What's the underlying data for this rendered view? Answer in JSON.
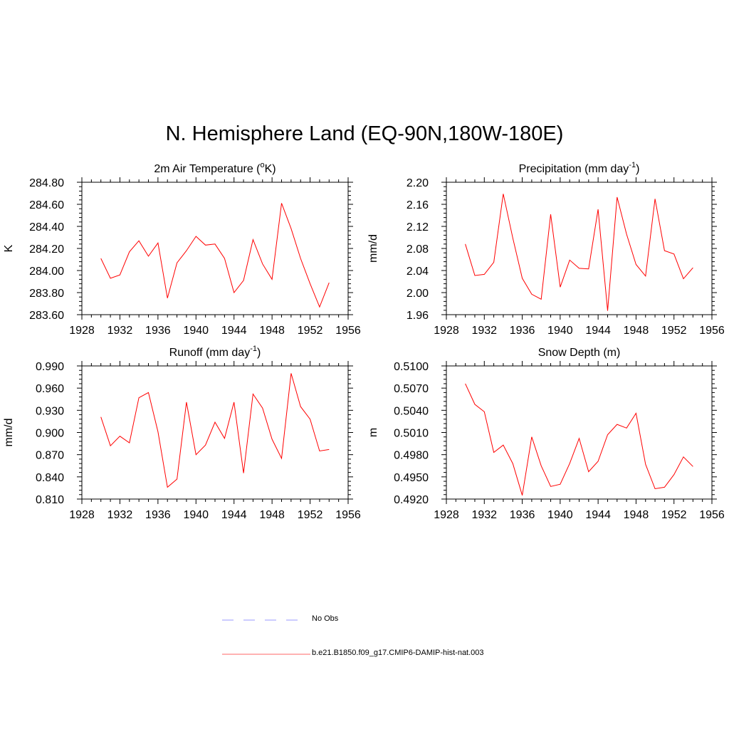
{
  "title": "N. Hemisphere Land (EQ-90N,180W-180E)",
  "chart_data": [
    {
      "type": "line",
      "title": "2m Air Temperature (°K)",
      "title_parts": [
        "2m Air Temperature (",
        "o",
        "K)"
      ],
      "ylabel": "K",
      "xlim": [
        1928,
        1956
      ],
      "ylim": [
        283.6,
        284.8
      ],
      "xticks": [
        "1928",
        "1932",
        "1936",
        "1940",
        "1944",
        "1948",
        "1952",
        "1956"
      ],
      "yticks": [
        "283.60",
        "283.80",
        "284.00",
        "284.20",
        "284.40",
        "284.60",
        "284.80"
      ],
      "series": [
        {
          "color": "#ff0000",
          "x": [
            1930,
            1931,
            1932,
            1933,
            1934,
            1935,
            1936,
            1937,
            1938,
            1939,
            1940,
            1941,
            1942,
            1943,
            1944,
            1945,
            1946,
            1947,
            1948,
            1949,
            1950,
            1951,
            1952,
            1953,
            1954
          ],
          "y": [
            284.11,
            283.93,
            283.96,
            284.17,
            284.27,
            284.13,
            284.25,
            283.75,
            284.07,
            284.18,
            284.31,
            284.23,
            284.24,
            284.11,
            283.8,
            283.91,
            284.28,
            284.06,
            283.92,
            284.61,
            284.38,
            284.11,
            283.88,
            283.67,
            283.89
          ]
        }
      ]
    },
    {
      "type": "line",
      "title": "Precipitation (mm day-1)",
      "title_parts": [
        "Precipitation (mm day",
        "-1",
        ")"
      ],
      "ylabel": "mm/d",
      "xlim": [
        1928,
        1956
      ],
      "ylim": [
        1.96,
        2.2
      ],
      "xticks": [
        "1928",
        "1932",
        "1936",
        "1940",
        "1944",
        "1948",
        "1952",
        "1956"
      ],
      "yticks": [
        "1.96",
        "2.00",
        "2.04",
        "2.08",
        "2.12",
        "2.16",
        "2.20"
      ],
      "series": [
        {
          "color": "#ff0000",
          "x": [
            1930,
            1931,
            1932,
            1933,
            1934,
            1935,
            1936,
            1937,
            1938,
            1939,
            1940,
            1941,
            1942,
            1943,
            1944,
            1945,
            1946,
            1947,
            1948,
            1949,
            1950,
            1951,
            1952,
            1953,
            1954
          ],
          "y": [
            2.088,
            2.031,
            2.033,
            2.055,
            2.179,
            2.099,
            2.026,
            1.997,
            1.988,
            2.142,
            2.01,
            2.059,
            2.044,
            2.043,
            2.151,
            1.967,
            2.173,
            2.106,
            2.051,
            2.03,
            2.17,
            2.076,
            2.07,
            2.025,
            2.045
          ]
        }
      ]
    },
    {
      "type": "line",
      "title": "Runoff (mm day-1)",
      "title_parts": [
        "Runoff (mm day",
        "-1",
        ")"
      ],
      "ylabel": "mm/d",
      "xlim": [
        1928,
        1956
      ],
      "ylim": [
        0.81,
        0.99
      ],
      "xticks": [
        "1928",
        "1932",
        "1936",
        "1940",
        "1944",
        "1948",
        "1952",
        "1956"
      ],
      "yticks": [
        "0.810",
        "0.840",
        "0.870",
        "0.900",
        "0.930",
        "0.960",
        "0.990"
      ],
      "series": [
        {
          "color": "#ff0000",
          "x": [
            1930,
            1931,
            1932,
            1933,
            1934,
            1935,
            1936,
            1937,
            1938,
            1939,
            1940,
            1941,
            1942,
            1943,
            1944,
            1945,
            1946,
            1947,
            1948,
            1949,
            1950,
            1951,
            1952,
            1953,
            1954
          ],
          "y": [
            0.921,
            0.882,
            0.895,
            0.886,
            0.947,
            0.954,
            0.901,
            0.826,
            0.837,
            0.941,
            0.87,
            0.883,
            0.914,
            0.892,
            0.941,
            0.845,
            0.952,
            0.933,
            0.891,
            0.865,
            0.98,
            0.935,
            0.918,
            0.875,
            0.877
          ]
        }
      ]
    },
    {
      "type": "line",
      "title": "Snow Depth (m)",
      "title_parts": [
        "Snow Depth (m)",
        "",
        ""
      ],
      "ylabel": "m",
      "xlim": [
        1928,
        1956
      ],
      "ylim": [
        0.492,
        0.51
      ],
      "xticks": [
        "1928",
        "1932",
        "1936",
        "1940",
        "1944",
        "1948",
        "1952",
        "1956"
      ],
      "yticks": [
        "0.4920",
        "0.4950",
        "0.4980",
        "0.5010",
        "0.5040",
        "0.5070",
        "0.5100"
      ],
      "series": [
        {
          "color": "#ff0000",
          "x": [
            1930,
            1931,
            1932,
            1933,
            1934,
            1935,
            1936,
            1937,
            1938,
            1939,
            1940,
            1941,
            1942,
            1943,
            1944,
            1945,
            1946,
            1947,
            1948,
            1949,
            1950,
            1951,
            1952,
            1953,
            1954
          ],
          "y": [
            0.5076,
            0.5048,
            0.5038,
            0.4983,
            0.4993,
            0.4968,
            0.4925,
            0.5004,
            0.4965,
            0.4937,
            0.494,
            0.4968,
            0.5002,
            0.4957,
            0.4971,
            0.5007,
            0.5021,
            0.5016,
            0.5036,
            0.4967,
            0.4934,
            0.4936,
            0.4953,
            0.4977,
            0.4964
          ]
        }
      ]
    }
  ],
  "legend": [
    {
      "label": "No Obs",
      "color": "#9999ff",
      "style": "dashed"
    },
    {
      "label": "b.e21.B1850.f09_g17.CMIP6-DAMIP-hist-nat.003",
      "color": "#ff6666",
      "style": "solid"
    }
  ]
}
